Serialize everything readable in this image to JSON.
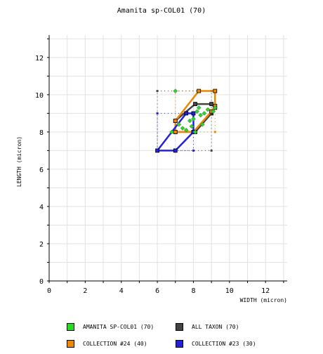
{
  "chart_data": {
    "type": "scatter",
    "title": "Amanita sp-COL01 (70)",
    "xlabel": "WIDTH (micron)",
    "ylabel": "LENGTH (micron)",
    "xlim": [
      0,
      13.2
    ],
    "ylim": [
      0,
      13.2
    ],
    "x_ticks": [
      0,
      2,
      4,
      6,
      8,
      10,
      12
    ],
    "y_ticks": [
      0,
      2,
      4,
      6,
      8,
      10,
      12
    ],
    "grid": true,
    "legend_position": "bottom",
    "series": [
      {
        "name": "AMANITA SP-COL01 (70)",
        "color": "#22dd22",
        "kind": "points",
        "points": [
          [
            7.0,
            10.2
          ],
          [
            7.4,
            8.2
          ],
          [
            7.8,
            8.6
          ],
          [
            7.9,
            8.3
          ],
          [
            8.0,
            8.7
          ],
          [
            8.2,
            9.1
          ],
          [
            8.3,
            9.3
          ],
          [
            8.4,
            8.9
          ],
          [
            8.5,
            8.4
          ],
          [
            8.6,
            9.0
          ],
          [
            8.8,
            9.2
          ],
          [
            9.1,
            9.1
          ],
          [
            9.2,
            9.3
          ],
          [
            6.8,
            8.0
          ],
          [
            7.2,
            8.4
          ],
          [
            7.6,
            8.1
          ],
          [
            8.1,
            8.0
          ]
        ]
      },
      {
        "name": "ALL TAXON (70)",
        "color": "#444444",
        "kind": "hull",
        "hull": [
          [
            8.1,
            9.5
          ],
          [
            9.0,
            9.5
          ],
          [
            9.2,
            9.3
          ],
          [
            9.0,
            9.0
          ],
          [
            8.1,
            8.0
          ],
          [
            7.0,
            8.0
          ],
          [
            7.0,
            8.6
          ]
        ],
        "range_box": [
          6.0,
          9.0,
          7.0,
          10.2
        ]
      },
      {
        "name": "COLLECTION #24 (40)",
        "color": "#ee8800",
        "kind": "hull",
        "hull": [
          [
            8.3,
            10.2
          ],
          [
            9.2,
            10.2
          ],
          [
            9.2,
            9.4
          ],
          [
            9.0,
            9.1
          ],
          [
            8.0,
            8.0
          ],
          [
            7.0,
            8.0
          ],
          [
            7.0,
            8.6
          ]
        ],
        "range_box": [
          7.0,
          9.2,
          8.0,
          10.2
        ]
      },
      {
        "name": "COLLECTION #23 (30)",
        "color": "#2222dd",
        "kind": "hull",
        "hull": [
          [
            6.0,
            7.0
          ],
          [
            7.0,
            7.0
          ],
          [
            8.0,
            8.0
          ],
          [
            8.0,
            9.0
          ],
          [
            7.6,
            9.0
          ]
        ],
        "range_box": [
          6.0,
          8.0,
          7.0,
          9.0
        ]
      }
    ]
  }
}
